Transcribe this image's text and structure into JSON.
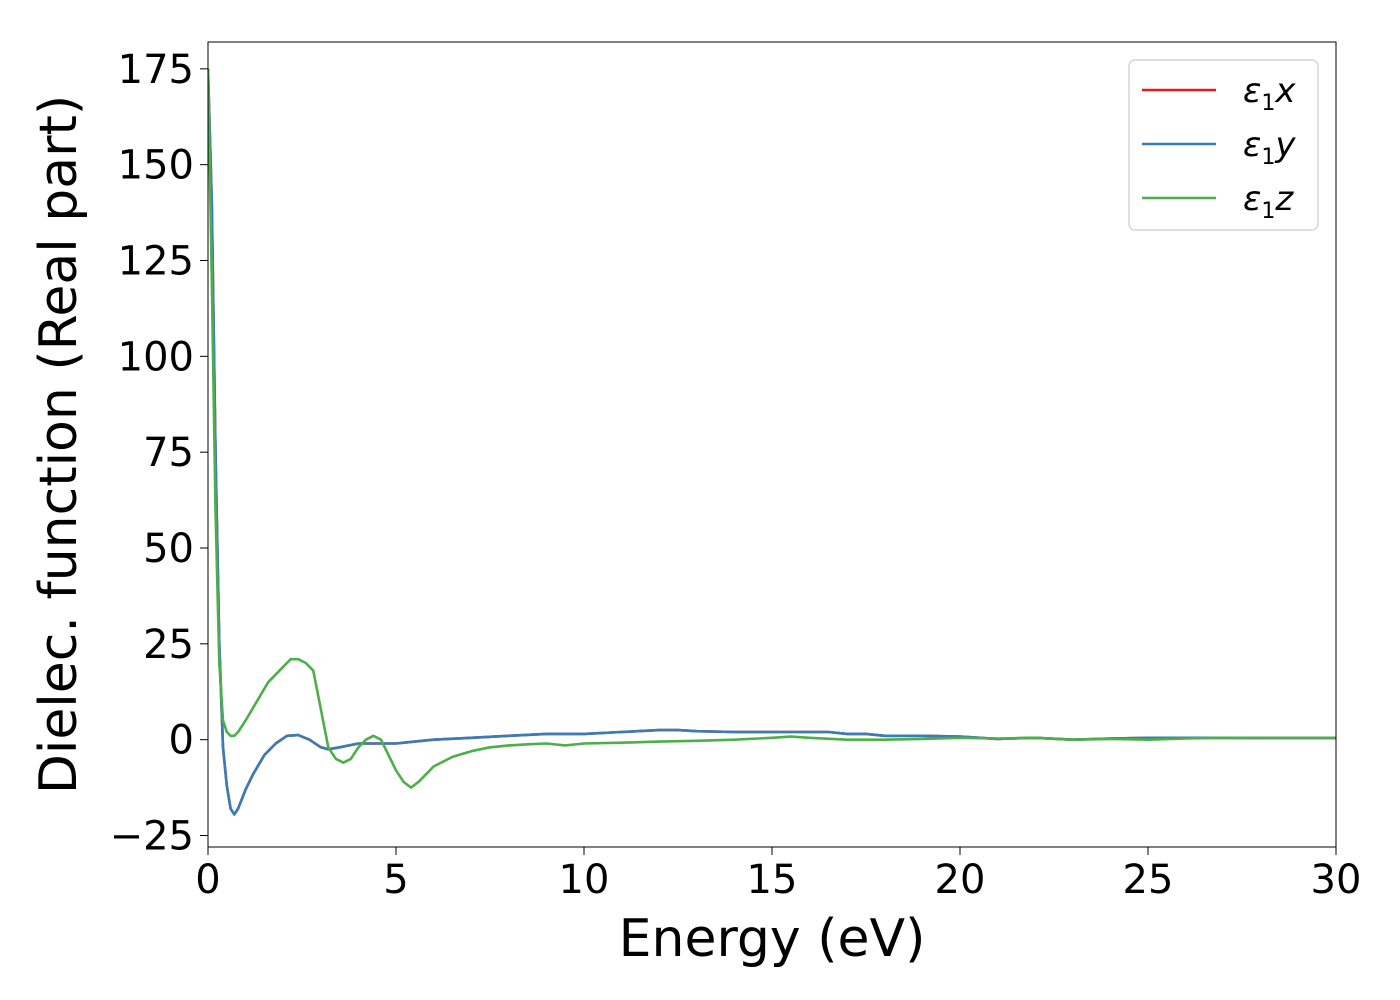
{
  "chart_data": {
    "type": "line",
    "xlabel": "Energy (eV)",
    "ylabel": "Dielec. function (Real part)",
    "xlim": [
      0,
      30
    ],
    "ylim": [
      -28,
      182
    ],
    "xticks": [
      0,
      5,
      10,
      15,
      20,
      25,
      30
    ],
    "yticks": [
      -25,
      0,
      25,
      50,
      75,
      100,
      125,
      150,
      175
    ],
    "grid": false,
    "legend_position": "top-right",
    "series": [
      {
        "name": "ε1x",
        "legend_main": "ε",
        "legend_sub": "1",
        "legend_suffix": "x",
        "color": "#e41a1c",
        "x": [
          0,
          0.1,
          0.2,
          0.3,
          0.4,
          0.5,
          0.6,
          0.7,
          0.8,
          1.0,
          1.2,
          1.5,
          1.8,
          2.1,
          2.4,
          2.7,
          3.0,
          3.2,
          3.5,
          4.0,
          4.5,
          5.0,
          5.5,
          6.0,
          7.0,
          8.0,
          9.0,
          10.0,
          11.0,
          12.0,
          12.5,
          13.0,
          14.0,
          15.0,
          16.0,
          16.5,
          17.0,
          17.5,
          18.0,
          19.0,
          20.0,
          21.0,
          22.0,
          23.0,
          24.0,
          25.0,
          26.0,
          27.0,
          28.0,
          29.0,
          30.0
        ],
        "y": [
          175,
          140,
          75,
          25,
          -2,
          -12,
          -18,
          -19.5,
          -18,
          -13,
          -9,
          -4,
          -1,
          1,
          1.2,
          0,
          -2,
          -2.5,
          -2,
          -1,
          -1,
          -1,
          -0.5,
          0,
          0.5,
          1,
          1.5,
          1.5,
          2,
          2.5,
          2.5,
          2.2,
          2,
          2,
          2,
          2,
          1.5,
          1.5,
          1,
          1,
          0.8,
          0.2,
          0.5,
          0,
          0.3,
          0.5,
          0.5,
          0.5,
          0.4,
          0.4,
          0.4
        ]
      },
      {
        "name": "ε1y",
        "legend_main": "ε",
        "legend_sub": "1",
        "legend_suffix": "y",
        "color": "#377eb8",
        "x": [
          0,
          0.1,
          0.2,
          0.3,
          0.4,
          0.5,
          0.6,
          0.7,
          0.8,
          1.0,
          1.2,
          1.5,
          1.8,
          2.1,
          2.4,
          2.7,
          3.0,
          3.2,
          3.5,
          4.0,
          4.5,
          5.0,
          5.5,
          6.0,
          7.0,
          8.0,
          9.0,
          10.0,
          11.0,
          12.0,
          12.5,
          13.0,
          14.0,
          15.0,
          16.0,
          16.5,
          17.0,
          17.5,
          18.0,
          19.0,
          20.0,
          21.0,
          22.0,
          23.0,
          24.0,
          25.0,
          26.0,
          27.0,
          28.0,
          29.0,
          30.0
        ],
        "y": [
          175,
          140,
          75,
          25,
          -2,
          -12,
          -18,
          -19.5,
          -18,
          -13,
          -9,
          -4,
          -1,
          1,
          1.2,
          0,
          -2,
          -2.5,
          -2,
          -1,
          -1,
          -1,
          -0.5,
          0,
          0.5,
          1,
          1.5,
          1.5,
          2,
          2.5,
          2.5,
          2.2,
          2,
          2,
          2,
          2,
          1.5,
          1.5,
          1,
          1,
          0.8,
          0.2,
          0.5,
          0,
          0.3,
          0.5,
          0.5,
          0.5,
          0.4,
          0.4,
          0.4
        ]
      },
      {
        "name": "ε1z",
        "legend_main": "ε",
        "legend_sub": "1",
        "legend_suffix": "z",
        "color": "#4daf4a",
        "x": [
          0,
          0.1,
          0.2,
          0.3,
          0.4,
          0.5,
          0.6,
          0.7,
          0.8,
          1.0,
          1.3,
          1.6,
          1.9,
          2.2,
          2.4,
          2.6,
          2.8,
          3.0,
          3.2,
          3.4,
          3.6,
          3.8,
          4.0,
          4.2,
          4.4,
          4.6,
          4.8,
          5.0,
          5.2,
          5.4,
          5.6,
          5.8,
          6.0,
          6.5,
          7.0,
          7.5,
          8.0,
          8.5,
          9.0,
          9.5,
          10.0,
          11.0,
          12.0,
          13.0,
          14.0,
          15.0,
          15.5,
          16.0,
          17.0,
          18.0,
          19.0,
          20.0,
          21.0,
          22.0,
          23.0,
          24.0,
          25.0,
          26.0,
          27.0,
          28.0,
          30.0
        ],
        "y": [
          175,
          120,
          60,
          20,
          5,
          2,
          1,
          1,
          2,
          5,
          10,
          15,
          18,
          21,
          21,
          20,
          18,
          8,
          -2,
          -5,
          -6,
          -5,
          -2,
          0,
          1,
          0,
          -4,
          -8,
          -11,
          -12.5,
          -11,
          -9,
          -7,
          -4.5,
          -3,
          -2,
          -1.5,
          -1.2,
          -1,
          -1.5,
          -1,
          -0.8,
          -0.5,
          -0.3,
          0,
          0.5,
          0.8,
          0.5,
          0,
          0,
          0.2,
          0.5,
          0.3,
          0.5,
          0,
          0.2,
          0,
          0.3,
          0.5,
          0.4,
          0.4
        ]
      }
    ]
  }
}
